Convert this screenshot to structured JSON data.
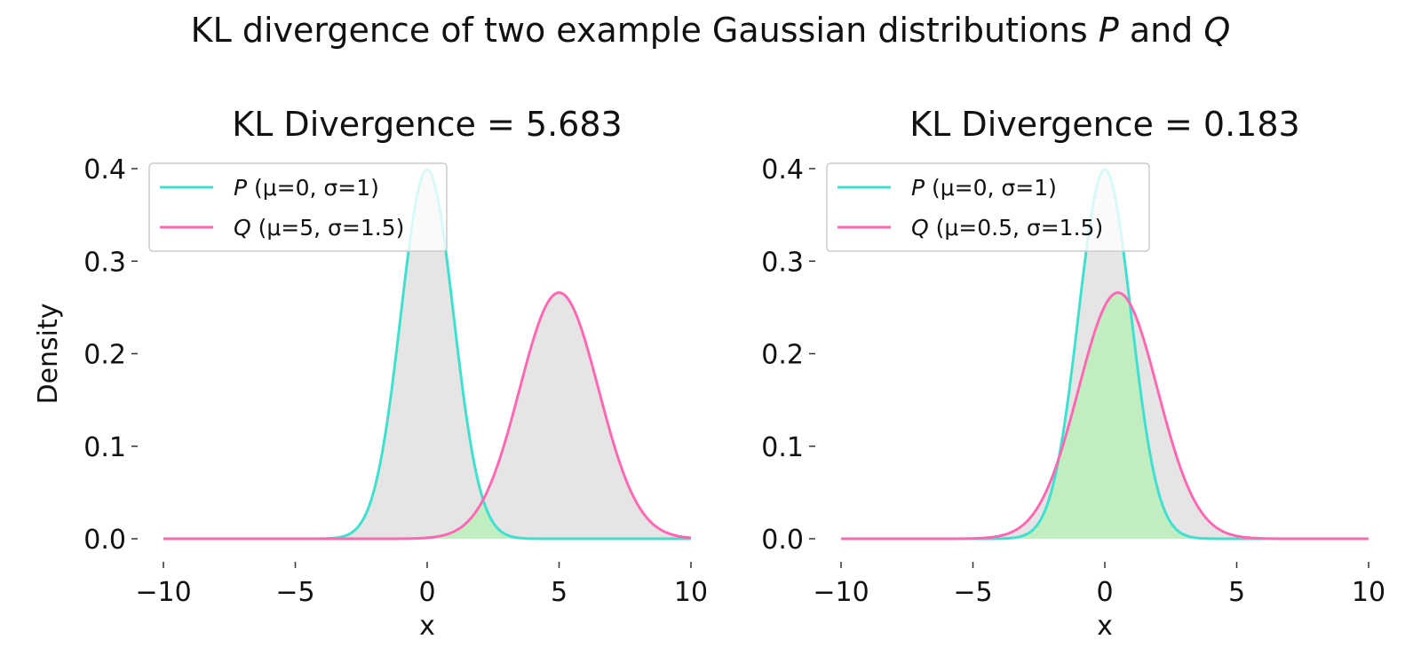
{
  "figure": {
    "title": "KL divergence of two example Gaussian distributions",
    "title_var_p": "P",
    "title_and": "and",
    "title_var_q": "Q"
  },
  "colors": {
    "p_line": "#40e0d0",
    "q_line": "#ff69b4",
    "fill_gray": "#e5e5e5",
    "fill_green": "#c1eec1"
  },
  "chart_data": [
    {
      "type": "line",
      "title": "KL Divergence = 5.683",
      "xlabel": "x",
      "ylabel": "Density",
      "xlim": [
        -10,
        10
      ],
      "ylim": [
        0,
        0.4
      ],
      "xticks": [
        -10,
        -5,
        0,
        5,
        10
      ],
      "xtick_labels": [
        "−10",
        "−5",
        "0",
        "5",
        "10"
      ],
      "yticks": [
        0.0,
        0.1,
        0.2,
        0.3,
        0.4
      ],
      "ytick_labels": [
        "0.0",
        "0.1",
        "0.2",
        "0.3",
        "0.4"
      ],
      "grid": false,
      "legend_position": "top-left",
      "fill": "overlap of P and Q in green, remainder of each curve in gray",
      "series": [
        {
          "name": "P (μ=0, σ=1)",
          "legend_var": "P",
          "legend_params": " (μ=0, σ=1)",
          "distribution": "normal",
          "mu": 0,
          "sigma": 1,
          "color": "#40e0d0"
        },
        {
          "name": "Q (μ=5, σ=1.5)",
          "legend_var": "Q",
          "legend_params": " (μ=5, σ=1.5)",
          "distribution": "normal",
          "mu": 5,
          "sigma": 1.5,
          "color": "#ff69b4"
        }
      ]
    },
    {
      "type": "line",
      "title": "KL Divergence = 0.183",
      "xlabel": "x",
      "ylabel": "",
      "xlim": [
        -10,
        10
      ],
      "ylim": [
        0,
        0.4
      ],
      "xticks": [
        -10,
        -5,
        0,
        5,
        10
      ],
      "xtick_labels": [
        "−10",
        "−5",
        "0",
        "5",
        "10"
      ],
      "yticks": [
        0.0,
        0.1,
        0.2,
        0.3,
        0.4
      ],
      "ytick_labels": [
        "0.0",
        "0.1",
        "0.2",
        "0.3",
        "0.4"
      ],
      "grid": false,
      "legend_position": "top-left",
      "fill": "overlap of P and Q in green, remainder of each curve in gray",
      "series": [
        {
          "name": "P (μ=0, σ=1)",
          "legend_var": "P",
          "legend_params": " (μ=0, σ=1)",
          "distribution": "normal",
          "mu": 0,
          "sigma": 1,
          "color": "#40e0d0"
        },
        {
          "name": "Q (μ=0.5, σ=1.5)",
          "legend_var": "Q",
          "legend_params": " (μ=0.5, σ=1.5)",
          "distribution": "normal",
          "mu": 0.5,
          "sigma": 1.5,
          "color": "#ff69b4"
        }
      ]
    }
  ]
}
